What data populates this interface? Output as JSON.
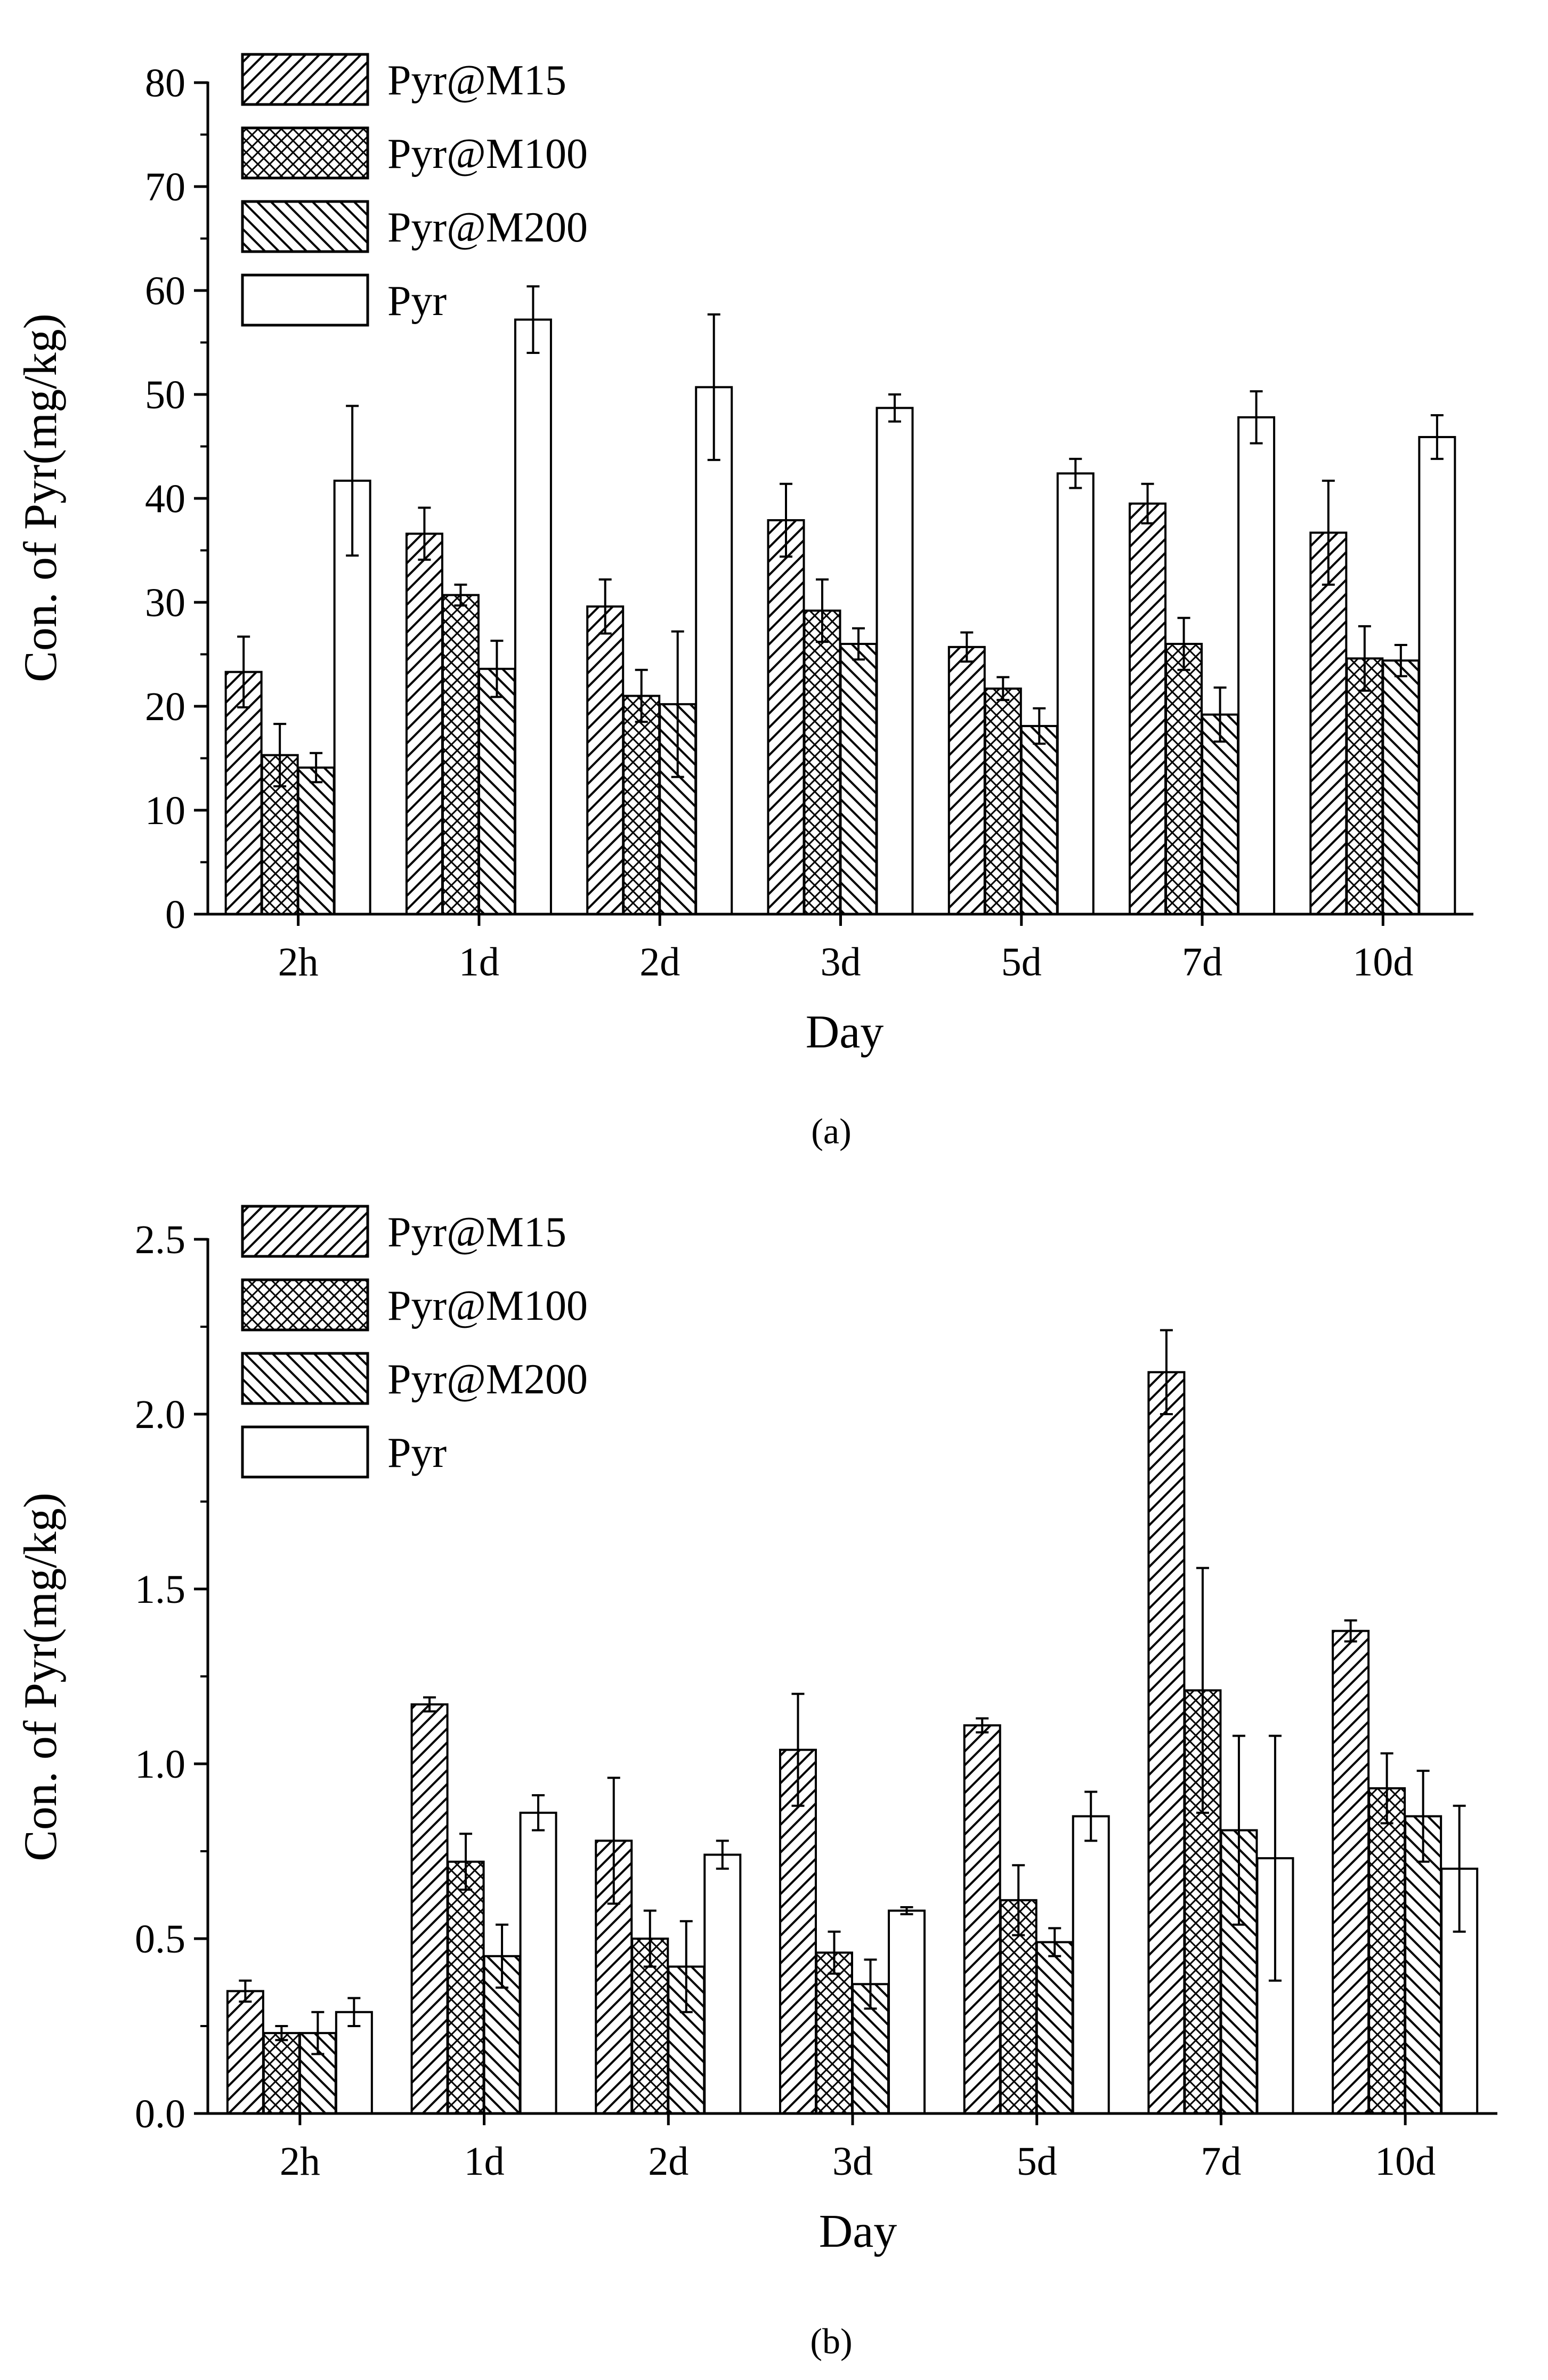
{
  "figure": {
    "captions": [
      "(a)",
      "(b)"
    ],
    "legend": [
      "Pyr@M15",
      "Pyr@M100",
      "Pyr@M200",
      "Pyr"
    ],
    "series_patterns": [
      "diag-fwd",
      "crosshatch",
      "diag-back",
      "none"
    ]
  },
  "chart_data": [
    {
      "type": "bar",
      "panel": "(a)",
      "xlabel": "Day",
      "ylabel": "Con. of Pyr(mg/kg)",
      "ylim": [
        0,
        80
      ],
      "yticks": [
        "0",
        "10",
        "20",
        "30",
        "40",
        "50",
        "60",
        "70",
        "80"
      ],
      "categories": [
        "2h",
        "1d",
        "2d",
        "3d",
        "5d",
        "7d",
        "10d"
      ],
      "legend_position": "top-left",
      "series": [
        {
          "name": "Pyr@M15",
          "values": [
            23.3,
            36.6,
            29.6,
            37.9,
            25.7,
            39.5,
            36.7
          ],
          "errors": [
            3.4,
            2.5,
            2.6,
            3.5,
            1.4,
            1.9,
            5.0
          ]
        },
        {
          "name": "Pyr@M100",
          "values": [
            15.3,
            30.7,
            21.0,
            29.2,
            21.7,
            26.0,
            24.6
          ],
          "errors": [
            3.0,
            1.0,
            2.5,
            3.0,
            1.1,
            2.5,
            3.1
          ]
        },
        {
          "name": "Pyr@M200",
          "values": [
            14.1,
            23.6,
            20.2,
            26.0,
            18.1,
            19.2,
            24.4
          ],
          "errors": [
            1.4,
            2.7,
            7.0,
            1.5,
            1.7,
            2.6,
            1.5
          ]
        },
        {
          "name": "Pyr",
          "values": [
            41.7,
            57.2,
            50.7,
            48.7,
            42.4,
            47.8,
            45.9
          ],
          "errors": [
            7.2,
            3.2,
            7.0,
            1.3,
            1.4,
            2.5,
            2.1
          ]
        }
      ]
    },
    {
      "type": "bar",
      "panel": "(b)",
      "xlabel": "Day",
      "ylabel": "Con. of Pyr(mg/kg)",
      "ylim": [
        0,
        2.5
      ],
      "yticks": [
        "0.0",
        "0.5",
        "1.0",
        "1.5",
        "2.0",
        "2.5"
      ],
      "categories": [
        "2h",
        "1d",
        "2d",
        "3d",
        "5d",
        "7d",
        "10d"
      ],
      "legend_position": "top-left",
      "series": [
        {
          "name": "Pyr@M15",
          "values": [
            0.35,
            1.17,
            0.78,
            1.04,
            1.11,
            2.12,
            1.38
          ],
          "errors": [
            0.03,
            0.02,
            0.18,
            0.16,
            0.02,
            0.12,
            0.03
          ]
        },
        {
          "name": "Pyr@M100",
          "values": [
            0.23,
            0.72,
            0.5,
            0.46,
            0.61,
            1.21,
            0.93
          ],
          "errors": [
            0.02,
            0.08,
            0.08,
            0.06,
            0.1,
            0.35,
            0.1
          ]
        },
        {
          "name": "Pyr@M200",
          "values": [
            0.23,
            0.45,
            0.42,
            0.37,
            0.49,
            0.81,
            0.85
          ],
          "errors": [
            0.06,
            0.09,
            0.13,
            0.07,
            0.04,
            0.27,
            0.13
          ]
        },
        {
          "name": "Pyr",
          "values": [
            0.29,
            0.86,
            0.74,
            0.58,
            0.85,
            0.73,
            0.7
          ],
          "errors": [
            0.04,
            0.05,
            0.04,
            0.01,
            0.07,
            0.35,
            0.18
          ]
        }
      ]
    }
  ]
}
